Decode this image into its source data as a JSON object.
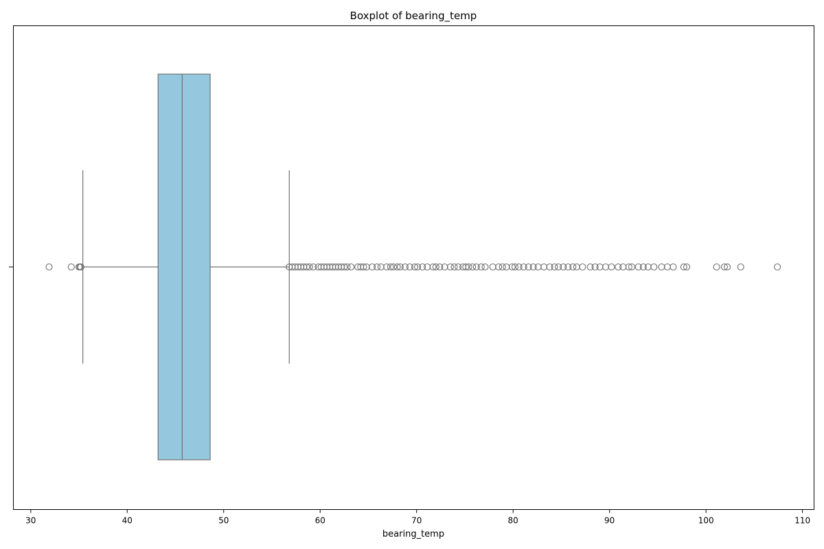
{
  "chart_data": {
    "type": "boxplot",
    "title": "Boxplot of bearing_temp",
    "xlabel": "bearing_temp",
    "ylabel": "",
    "xlim": [
      28.2,
      111.2
    ],
    "xticks": [
      30,
      40,
      50,
      60,
      70,
      80,
      90,
      100,
      110
    ],
    "grid": false,
    "orientation": "horizontal",
    "box": {
      "q1": 43.2,
      "median": 45.7,
      "q3": 48.6,
      "whisker_low": 35.4,
      "whisker_high": 56.8
    },
    "outliers": [
      31.9,
      34.2,
      35.0,
      35.1,
      35.2,
      56.8,
      57.1,
      57.4,
      57.7,
      58.0,
      58.3,
      58.6,
      58.9,
      59.3,
      59.8,
      60.1,
      60.4,
      60.7,
      61.0,
      61.3,
      61.6,
      61.9,
      62.2,
      62.5,
      62.8,
      63.2,
      63.9,
      64.2,
      64.5,
      64.8,
      65.4,
      65.9,
      66.3,
      66.9,
      67.3,
      67.6,
      68.0,
      68.3,
      68.8,
      69.3,
      69.8,
      70.1,
      70.6,
      71.1,
      71.7,
      72.0,
      72.4,
      72.9,
      73.5,
      73.9,
      74.3,
      74.8,
      75.1,
      75.4,
      75.8,
      76.2,
      76.7,
      77.1,
      77.9,
      78.5,
      78.9,
      79.3,
      79.9,
      80.2,
      80.6,
      81.1,
      81.6,
      82.1,
      82.6,
      83.2,
      83.8,
      84.3,
      84.7,
      85.2,
      85.7,
      86.2,
      86.6,
      87.2,
      88.0,
      88.5,
      89.0,
      89.6,
      90.2,
      90.9,
      91.4,
      92.0,
      92.3,
      93.0,
      93.5,
      94.0,
      94.6,
      95.4,
      96.0,
      96.6,
      97.7,
      98.0,
      101.1,
      101.9,
      102.2,
      103.6,
      107.4
    ],
    "colors": {
      "box_fill": "#95c8df",
      "box_edge": "#707070",
      "whisker": "#707070",
      "outlier_edge": "#707070"
    }
  }
}
